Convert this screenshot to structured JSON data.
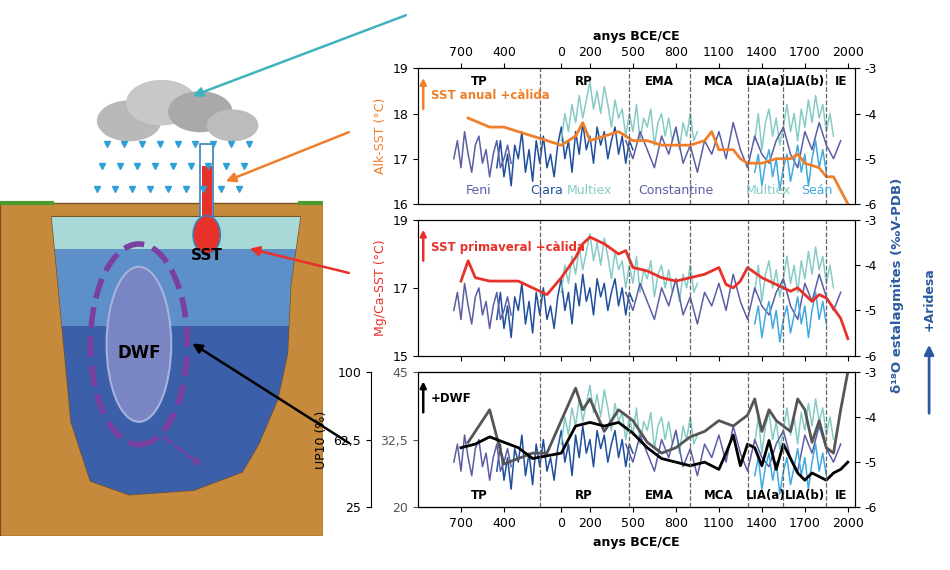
{
  "chart_data": {
    "type": "multi_panel",
    "x_axis": {
      "label": "anys BCE/CE",
      "xlim": [
        -1000,
        2050
      ],
      "xticks": [
        {
          "value": -700,
          "label": "700"
        },
        {
          "value": -400,
          "label": "400"
        },
        0,
        200,
        500,
        800,
        1100,
        1400,
        1700,
        2000
      ]
    },
    "periods": {
      "boundaries": [
        -150,
        470,
        900,
        1300,
        1550,
        1850
      ],
      "labels": [
        "TP",
        "RP",
        "EMA",
        "MCA",
        "LIA(a)",
        "LIA(b)",
        "IE"
      ]
    },
    "right_axis": {
      "label": "δ¹⁸O estalagmites (‰V-PDB)",
      "annotation": "+Aridesa",
      "color": "#2b5aa0",
      "ylim": [
        -6,
        -3
      ],
      "yticks": [
        -6,
        -5,
        -4,
        -3
      ]
    },
    "stalagmites": [
      {
        "name": "Ciara",
        "color": "#1f4e9c",
        "x": [
          -450,
          -425,
          -400,
          -375,
          -350,
          -325,
          -300,
          -275,
          -250,
          -225,
          -200,
          -175,
          -150,
          -125,
          -100,
          -75,
          -50,
          -25,
          0,
          25,
          50,
          75,
          100,
          125,
          150,
          175,
          200,
          225,
          250,
          275,
          300,
          325,
          350,
          375,
          400,
          425,
          450,
          475,
          500
        ],
        "values": [
          -5.2,
          -4.6,
          -5.4,
          -4.9,
          -5.6,
          -4.7,
          -5.0,
          -4.4,
          -5.3,
          -4.8,
          -5.5,
          -4.6,
          -5.1,
          -4.5,
          -5.2,
          -4.9,
          -5.4,
          -4.7,
          -4.3,
          -5.0,
          -4.6,
          -5.3,
          -4.4,
          -4.9,
          -4.2,
          -4.8,
          -4.5,
          -5.1,
          -4.3,
          -4.7,
          -4.4,
          -5.0,
          -4.6,
          -4.3,
          -4.9,
          -4.5,
          -5.1,
          -4.6,
          -4.8
        ]
      },
      {
        "name": "Feni",
        "color": "#5b5ea6",
        "x": [
          -750,
          -725,
          -700,
          -675,
          -650,
          -625,
          -600,
          -575,
          -550,
          -525,
          -500,
          -475,
          -450,
          -425,
          -400,
          -375,
          -350
        ],
        "values": [
          -5.0,
          -4.6,
          -5.2,
          -4.4,
          -4.9,
          -5.3,
          -4.7,
          -4.5,
          -5.1,
          -4.8,
          -5.4,
          -4.9,
          -4.6,
          -5.2,
          -5.0,
          -4.7,
          -5.1
        ]
      },
      {
        "name": "Multiex",
        "color": "#86cbc5",
        "x": [
          0,
          25,
          50,
          75,
          100,
          125,
          150,
          175,
          200,
          225,
          250,
          275,
          300,
          325,
          350,
          375,
          400,
          425,
          450,
          475,
          500,
          525,
          550,
          575,
          600,
          625,
          650,
          675,
          700,
          725,
          750,
          775,
          800,
          825,
          850,
          875,
          900,
          925,
          950,
          1150,
          1350,
          1375,
          1400,
          1425,
          1450,
          1475,
          1500,
          1525,
          1550,
          1575,
          1600,
          1625,
          1650,
          1675,
          1700,
          1725,
          1750,
          1775,
          1800,
          1825,
          1850,
          1875,
          1900
        ],
        "values": [
          -4.6,
          -4.0,
          -4.4,
          -3.8,
          -4.2,
          -3.6,
          -4.1,
          -3.7,
          -3.3,
          -3.9,
          -3.5,
          -4.0,
          -3.4,
          -3.8,
          -4.3,
          -3.7,
          -4.1,
          -3.9,
          -4.5,
          -4.0,
          -4.4,
          -3.8,
          -4.6,
          -4.1,
          -4.3,
          -3.9,
          -4.7,
          -4.2,
          -4.0,
          -4.5,
          -4.1,
          -4.6,
          -4.3,
          -4.8,
          -4.2,
          -4.5,
          -4.0,
          -4.6,
          -4.4,
          null,
          -4.6,
          -4.0,
          -4.8,
          -4.2,
          -3.9,
          -4.5,
          -4.1,
          -4.7,
          -4.3,
          -3.8,
          -4.4,
          -4.0,
          -4.6,
          -3.9,
          -4.3,
          -3.7,
          -4.2,
          -3.6,
          -4.1,
          -3.8,
          -4.4,
          -4.0,
          -4.5
        ]
      },
      {
        "name": "Constantine",
        "color": "#5b5ea6",
        "x": [
          450,
          500,
          550,
          600,
          650,
          700,
          750,
          800,
          850,
          900,
          950,
          1000,
          1050,
          1100,
          1150,
          1200,
          1250,
          1300,
          1350,
          1400,
          1450,
          1500,
          1550,
          1600,
          1650,
          1700,
          1750,
          1800,
          1850,
          1900,
          1950
        ],
        "values": [
          -4.6,
          -5.0,
          -4.4,
          -4.8,
          -5.2,
          -4.5,
          -4.9,
          -4.3,
          -5.1,
          -4.7,
          -5.3,
          -4.6,
          -4.9,
          -4.4,
          -5.0,
          -4.2,
          -4.8,
          -5.2,
          -4.5,
          -4.9,
          -5.1,
          -4.6,
          -4.3,
          -4.9,
          -5.2,
          -4.4,
          -4.8,
          -4.2,
          -4.7,
          -5.0,
          -4.6
        ]
      },
      {
        "name": "Seán",
        "color": "#3fa9e0",
        "x": [
          1350,
          1375,
          1400,
          1425,
          1450,
          1475,
          1500,
          1525,
          1550,
          1575,
          1600,
          1625,
          1650,
          1675,
          1700,
          1725,
          1750,
          1775,
          1800,
          1825,
          1850
        ],
        "values": [
          -5.3,
          -4.9,
          -5.6,
          -5.1,
          -4.8,
          -5.4,
          -5.0,
          -5.7,
          -5.2,
          -4.9,
          -5.5,
          -5.1,
          -4.7,
          -5.3,
          -4.9,
          -5.6,
          -5.0,
          -4.6,
          -5.2,
          -4.8,
          -5.3
        ]
      }
    ],
    "panels": [
      {
        "type": "line",
        "ylabel": "Alk-SST (°C)",
        "annotation": "SST anual +càlida",
        "color": "#f07f2c",
        "ylim": [
          16,
          19
        ],
        "yticks": [
          16,
          17,
          18,
          19
        ],
        "series": [
          {
            "color": "#f07f2c",
            "x": [
              -650,
              -500,
              -400,
              -300,
              -200,
              -100,
              0,
              100,
              150,
              200,
              300,
              400,
              500,
              600,
              700,
              800,
              900,
              1000,
              1050,
              1100,
              1200,
              1250,
              1300,
              1400,
              1500,
              1600,
              1650,
              1700,
              1800,
              1850,
              1900,
              1950,
              2000
            ],
            "values": [
              17.9,
              17.7,
              17.7,
              17.6,
              17.5,
              17.4,
              17.3,
              17.5,
              17.8,
              17.4,
              17.5,
              17.6,
              17.4,
              17.4,
              17.3,
              17.3,
              17.3,
              17.4,
              17.6,
              17.2,
              17.2,
              17.0,
              16.9,
              16.9,
              17.0,
              17.0,
              17.1,
              16.9,
              16.8,
              16.6,
              16.6,
              16.3,
              16.0
            ]
          }
        ]
      },
      {
        "type": "line",
        "ylabel": "Mg/Ca-SST (°C)",
        "annotation": "SST primaveral +càlida",
        "color": "#e8312a",
        "ylim": [
          15,
          19
        ],
        "yticks": [
          15,
          17,
          19
        ],
        "series": [
          {
            "color": "#e8312a",
            "x": [
              -700,
              -650,
              -600,
              -500,
              -400,
              -300,
              -200,
              -100,
              0,
              50,
              100,
              150,
              200,
              250,
              300,
              400,
              450,
              500,
              600,
              700,
              800,
              900,
              1000,
              1100,
              1150,
              1200,
              1250,
              1300,
              1400,
              1500,
              1550,
              1600,
              1650,
              1700,
              1750,
              1800,
              1850,
              1900,
              1950,
              2000
            ],
            "values": [
              17.2,
              17.8,
              17.3,
              17.2,
              17.2,
              17.2,
              17.0,
              16.8,
              17.3,
              17.6,
              17.9,
              18.3,
              18.5,
              18.4,
              18.3,
              18.0,
              18.1,
              17.6,
              17.5,
              17.3,
              17.2,
              17.3,
              17.4,
              17.6,
              17.1,
              17.0,
              17.2,
              17.6,
              17.3,
              17.1,
              17.0,
              16.9,
              17.0,
              16.8,
              16.6,
              16.8,
              16.7,
              16.4,
              16.1,
              15.5
            ]
          }
        ]
      },
      {
        "type": "line",
        "ylabel": "UP10 (%)",
        "annotation": "+DWF",
        "color": "#000000",
        "ylim": [
          25,
          100
        ],
        "yticks": [
          25,
          {
            "value": 62.5,
            "label": "62,5"
          },
          100
        ],
        "y3lim": [
          20,
          45
        ],
        "y3ticks": [
          20,
          {
            "value": 32.5,
            "label": "32,5"
          },
          45
        ],
        "series": [
          {
            "color": "#000000",
            "x": [
              -700,
              -600,
              -500,
              -300,
              -200,
              0,
              100,
              200,
              300,
              400,
              500,
              600,
              700,
              800,
              900,
              1000,
              1100,
              1150,
              1200,
              1250,
              1300,
              1350,
              1400,
              1450,
              1500,
              1550,
              1600,
              1650,
              1700,
              1750,
              1800,
              1850,
              1900,
              1950,
              2000
            ],
            "values": [
              58,
              60,
              64,
              58,
              52,
              55,
              70,
              72,
              70,
              72,
              66,
              58,
              52,
              50,
              48,
              50,
              46,
              55,
              65,
              48,
              60,
              58,
              48,
              62,
              46,
              60,
              52,
              44,
              40,
              44,
              42,
              40,
              44,
              46,
              50
            ]
          },
          {
            "color": "#555555",
            "axis": "y3",
            "x": [
              -650,
              -500,
              -400,
              -200,
              -100,
              0,
              100,
              150,
              200,
              300,
              400,
              500,
              600,
              700,
              800,
              900,
              1000,
              1100,
              1200,
              1300,
              1350,
              1400,
              1450,
              1500,
              1600,
              1650,
              1700,
              1750,
              1800,
              1850,
              1900,
              1950,
              2000
            ],
            "values": [
              32,
              38,
              28,
              30,
              30,
              36,
              42,
              38,
              40,
              34,
              38,
              36,
              32,
              30,
              31,
              33,
              34,
              36,
              35,
              37,
              40,
              34,
              38,
              36,
              34,
              40,
              38,
              32,
              36,
              31,
              30,
              38,
              45
            ]
          }
        ]
      }
    ]
  },
  "diagram": {
    "thermometer_label": "SST",
    "circulation_label": "DWF"
  }
}
